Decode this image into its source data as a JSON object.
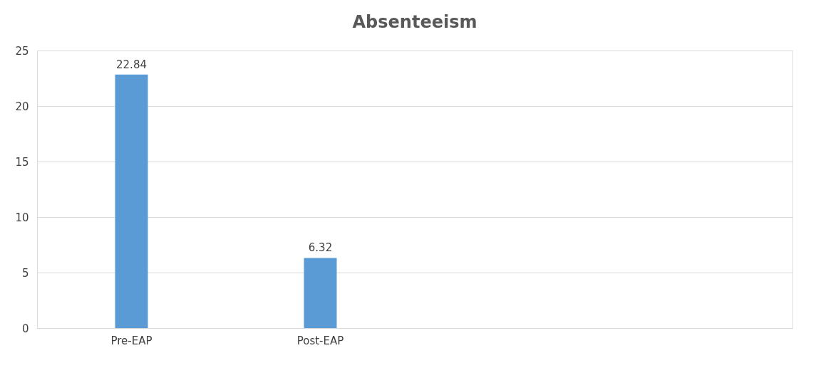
{
  "chart_data": {
    "type": "bar",
    "title": "Absenteeism",
    "categories": [
      "Pre-EAP",
      "Post-EAP",
      null,
      null
    ],
    "values": [
      22.84,
      6.32,
      null,
      null
    ],
    "color": "#5b9bd5",
    "ylim": [
      0,
      25
    ],
    "yticks": [
      0,
      5,
      10,
      15,
      20,
      25
    ],
    "grid": "y",
    "data_labels": true
  }
}
